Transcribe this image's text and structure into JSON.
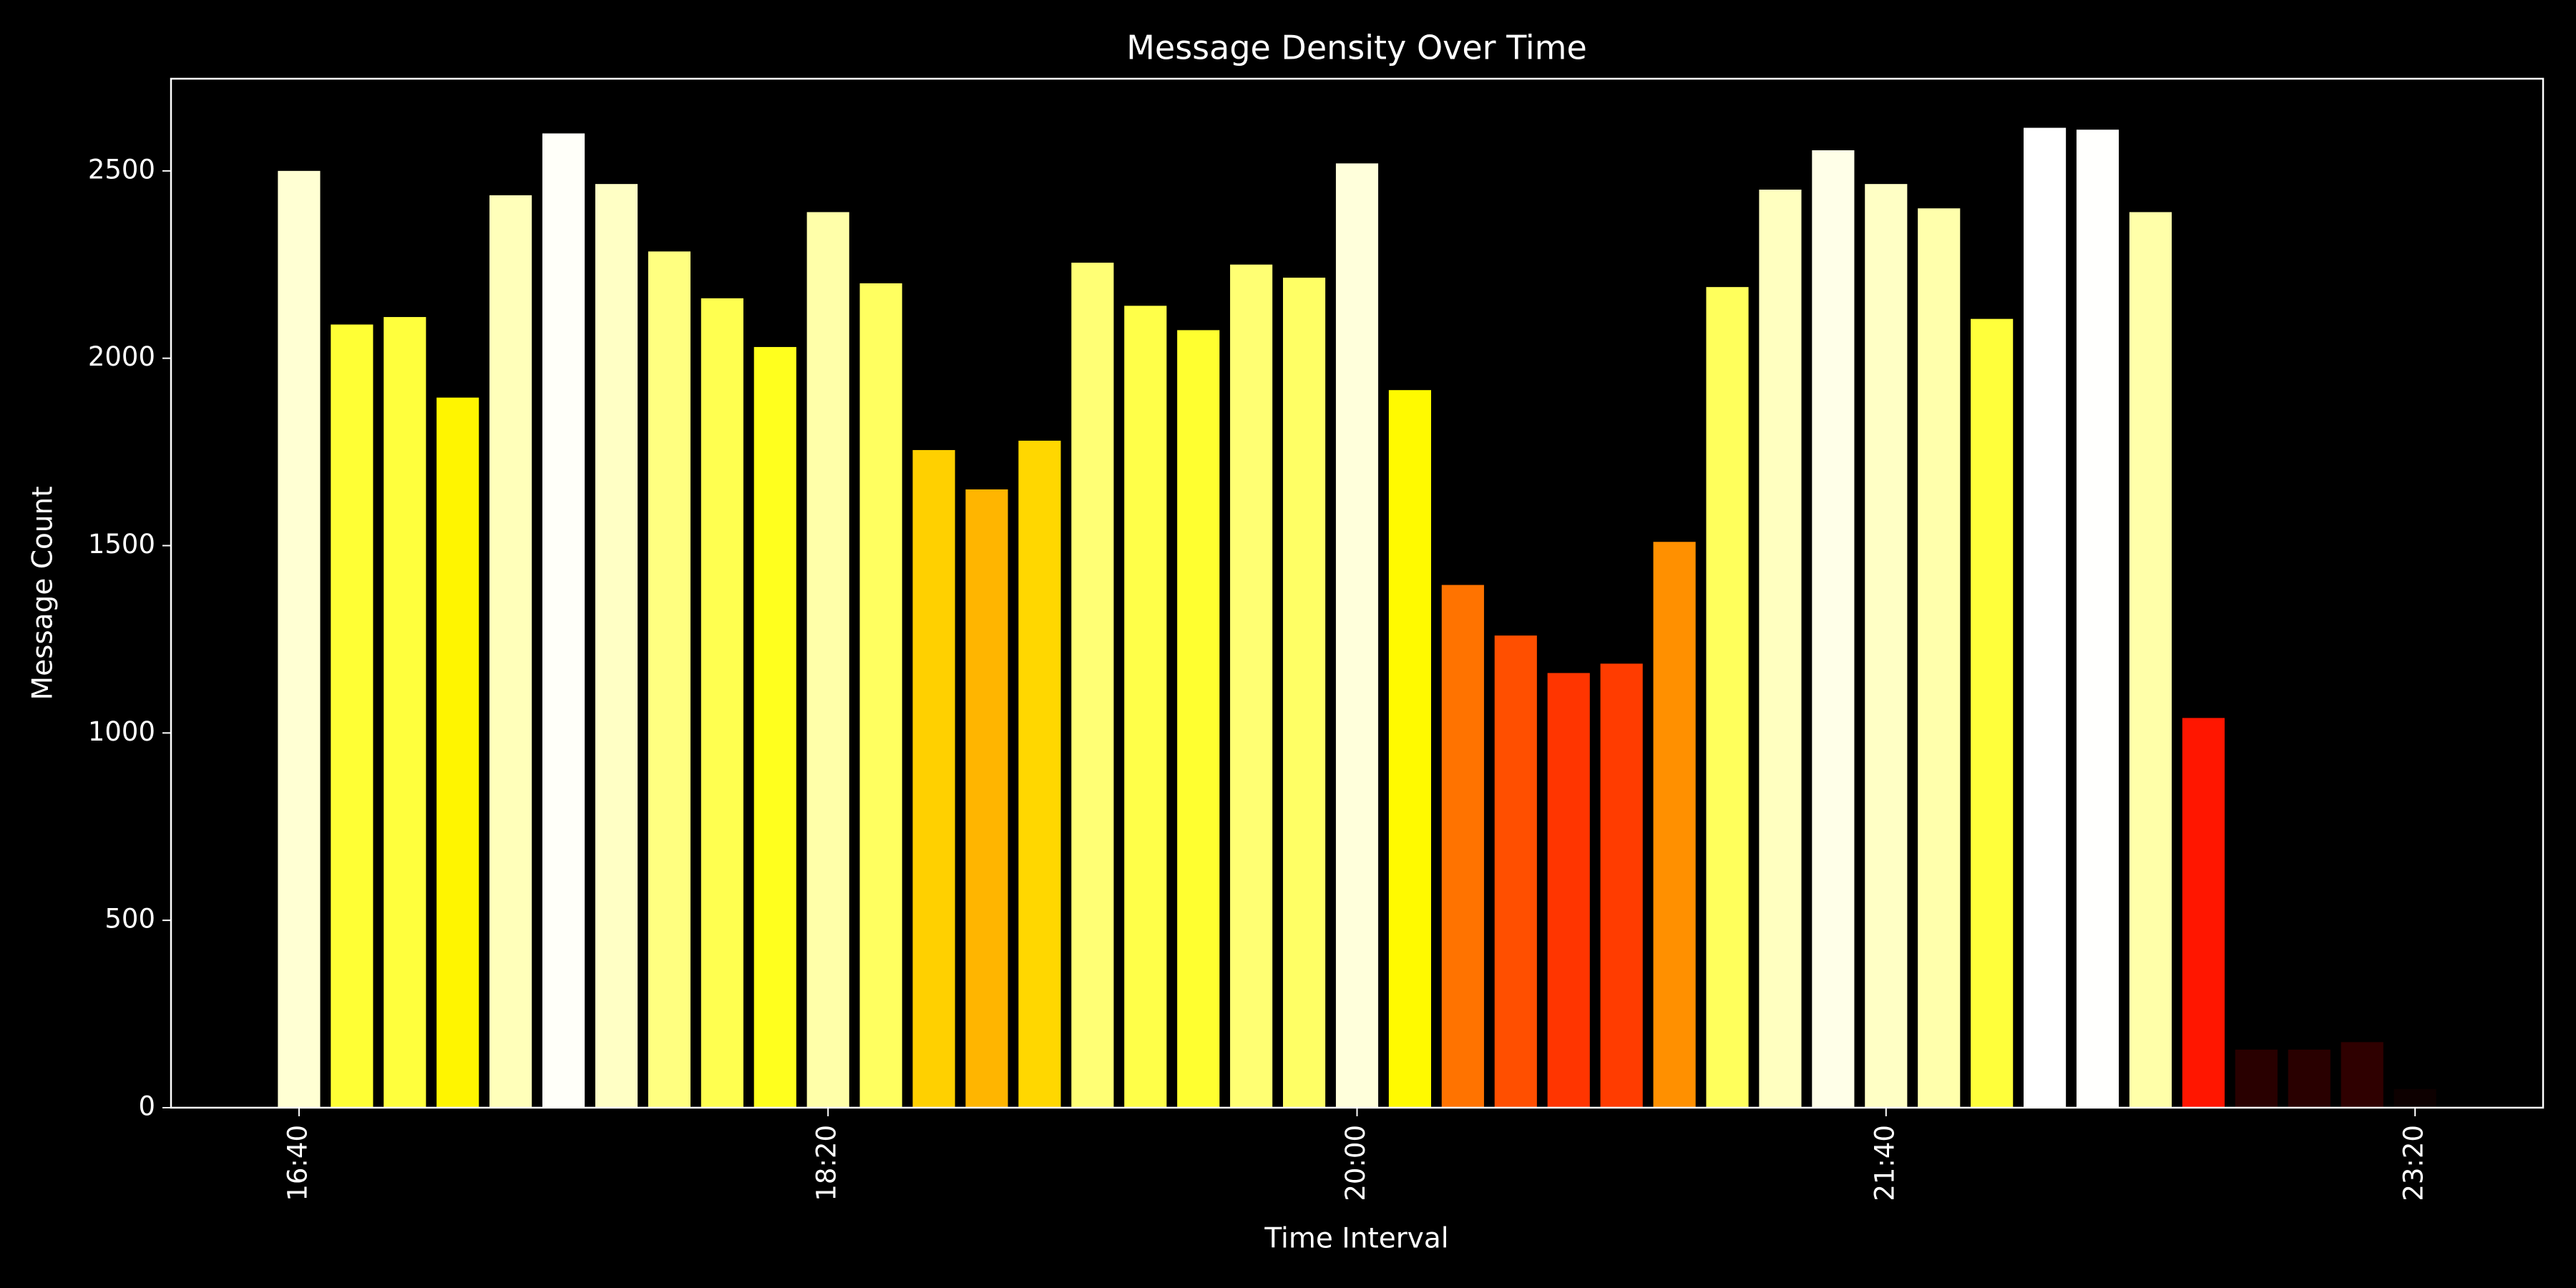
{
  "chart_data": {
    "type": "bar",
    "title": "Message Density Over Time",
    "xlabel": "Time Interval",
    "ylabel": "Message Count",
    "categories": [
      "16:40",
      null,
      null,
      null,
      null,
      null,
      null,
      null,
      null,
      null,
      "18:20",
      null,
      null,
      null,
      null,
      null,
      null,
      null,
      null,
      null,
      "20:00",
      null,
      null,
      null,
      null,
      null,
      null,
      null,
      null,
      null,
      "21:40",
      null,
      null,
      null,
      null,
      null,
      null,
      null,
      null,
      null,
      "23:20"
    ],
    "values": [
      2500,
      2090,
      2110,
      1895,
      2435,
      2600,
      2465,
      2285,
      2160,
      2030,
      2390,
      2200,
      1755,
      1650,
      1780,
      2255,
      2140,
      2075,
      2250,
      2215,
      2520,
      1915,
      1395,
      1260,
      1160,
      1185,
      1510,
      2190,
      2450,
      2555,
      2465,
      2400,
      2105,
      2615,
      2610,
      2390,
      1040,
      155,
      155,
      175,
      50
    ],
    "colormap": "hot",
    "ylim": [
      0,
      2746
    ],
    "yticks": [
      0,
      500,
      1000,
      1500,
      2000,
      2500
    ],
    "grid": false
  }
}
